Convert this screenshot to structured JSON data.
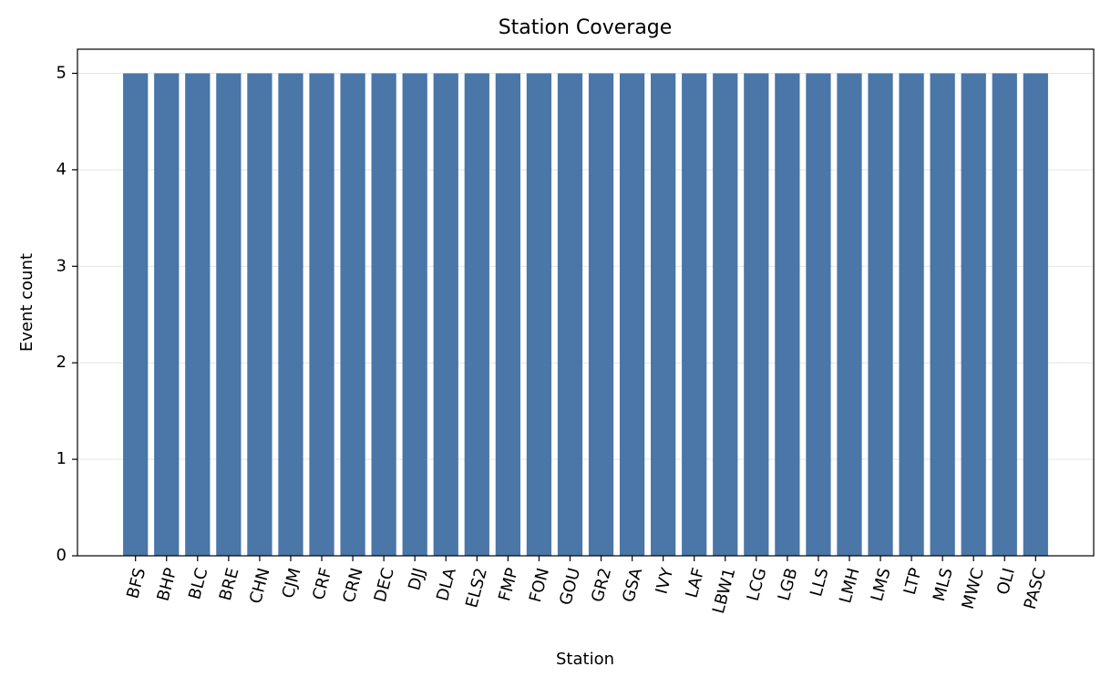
{
  "chart_data": {
    "type": "bar",
    "title": "Station Coverage",
    "x_label": "Station",
    "y_label": "Event count",
    "categories": [
      "BFS",
      "BHP",
      "BLC",
      "BRE",
      "CHN",
      "CJM",
      "CRF",
      "CRN",
      "DEC",
      "DJJ",
      "DLA",
      "ELS2",
      "FMP",
      "FON",
      "GOU",
      "GR2",
      "GSA",
      "IVY",
      "LAF",
      "LBW1",
      "LCG",
      "LGB",
      "LLS",
      "LMH",
      "LMS",
      "LTP",
      "MLS",
      "MWC",
      "OLI",
      "PASC"
    ],
    "values": [
      5,
      5,
      5,
      5,
      5,
      5,
      5,
      5,
      5,
      5,
      5,
      5,
      5,
      5,
      5,
      5,
      5,
      5,
      5,
      5,
      5,
      5,
      5,
      5,
      5,
      5,
      5,
      5,
      5,
      5
    ],
    "color": "#4a76a8",
    "ylim": [
      0,
      5.25
    ],
    "yticks": [
      0,
      1,
      2,
      3,
      4,
      5
    ],
    "grid": true
  }
}
